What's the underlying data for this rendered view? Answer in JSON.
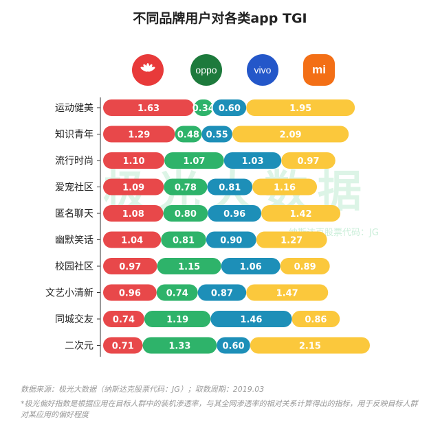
{
  "title": "不同品牌用户对各类app TGI",
  "brands": [
    {
      "name": "huawei-logo",
      "label": "",
      "color": "#e83a3a"
    },
    {
      "name": "oppo-logo",
      "label": "oppo",
      "color": "#1d7a3c"
    },
    {
      "name": "vivo-logo",
      "label": "vivo",
      "color": "#2457c9"
    },
    {
      "name": "xiaomi-logo",
      "label": "mi",
      "color": "#f36f16"
    }
  ],
  "watermark": {
    "main": "极光大数据",
    "sub": "纳斯达克股票代码：JG"
  },
  "footer": {
    "source": "数据来源：极光大数据（纳斯达克股票代码：JG）；取数周期：2019.03",
    "note": "*极光偏好指数是根据应用在目标人群中的装机渗透率，与其全网渗透率的相对关系计算得出的指标，用于反映目标人群对某应用的偏好程度"
  },
  "chart_data": {
    "type": "bar",
    "stacked": true,
    "orientation": "horizontal",
    "categories": [
      "运动健美",
      "知识青年",
      "流行时尚",
      "爱宠社区",
      "匿名聊天",
      "幽默笑话",
      "校园社区",
      "文艺小清新",
      "同城交友",
      "二次元"
    ],
    "series": [
      {
        "color": "#e8484a",
        "values": [
          1.63,
          1.29,
          1.1,
          1.09,
          1.08,
          1.04,
          0.97,
          0.96,
          0.74,
          0.71
        ]
      },
      {
        "color": "#2eb36a",
        "values": [
          0.34,
          0.48,
          1.07,
          0.78,
          0.8,
          0.81,
          1.15,
          0.74,
          1.19,
          1.33
        ]
      },
      {
        "color": "#1d8fb8",
        "values": [
          0.6,
          0.55,
          1.03,
          0.81,
          0.96,
          0.9,
          1.06,
          0.87,
          1.46,
          0.6
        ]
      },
      {
        "color": "#fbc83c",
        "values": [
          1.95,
          2.09,
          0.97,
          1.16,
          1.42,
          1.27,
          0.89,
          1.47,
          0.86,
          2.15
        ]
      }
    ],
    "data_labels": [
      [
        "1.63",
        "0.34",
        "0.60",
        "1.95"
      ],
      [
        "1.29",
        "0.48",
        "0.55",
        "2.09"
      ],
      [
        "1.10",
        "1.07",
        "1.03",
        "0.97"
      ],
      [
        "1.09",
        "0.78",
        "0.81",
        "1.16"
      ],
      [
        "1.08",
        "0.80",
        "0.96",
        "1.42"
      ],
      [
        "1.04",
        "0.81",
        "0.90",
        "1.27"
      ],
      [
        "0.97",
        "1.15",
        "1.06",
        "0.89"
      ],
      [
        "0.96",
        "0.74",
        "0.87",
        "1.47"
      ],
      [
        "0.74",
        "1.19",
        "1.46",
        "0.86"
      ],
      [
        "0.71",
        "1.33",
        "0.60",
        "2.15"
      ]
    ],
    "grid": false,
    "legend": "top (brand logos)"
  }
}
